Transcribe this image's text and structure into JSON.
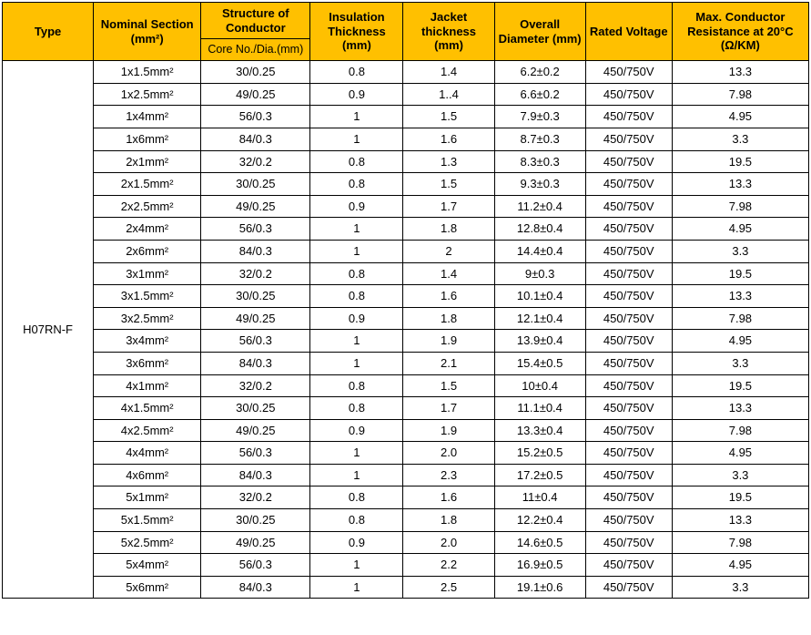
{
  "colors": {
    "header_bg": "#ffc000",
    "border": "#000000",
    "text": "#000000",
    "bg": "#ffffff"
  },
  "header": {
    "type": "Type",
    "nominal": "Nominal Section (mm²)",
    "structure_top": "Structure of Conductor",
    "structure_sub": "Core No./Dia.(mm)",
    "insulation": "Insulation Thickness (mm)",
    "jacket": "Jacket thickness (mm)",
    "diameter": "Overall Diameter (mm)",
    "voltage": "Rated Voltage",
    "resistance": "Max. Conductor Resistance at 20°C (Ω/KM)"
  },
  "type_label": "H07RN-F",
  "rows": [
    {
      "nom": "1x1.5mm²",
      "str": "30/0.25",
      "ins": "0.8",
      "jack": "1.4",
      "dia": "6.2±0.2",
      "volt": "450/750V",
      "res": "13.3"
    },
    {
      "nom": "1x2.5mm²",
      "str": "49/0.25",
      "ins": "0.9",
      "jack": "1..4",
      "dia": "6.6±0.2",
      "volt": "450/750V",
      "res": "7.98"
    },
    {
      "nom": "1x4mm²",
      "str": "56/0.3",
      "ins": "1",
      "jack": "1.5",
      "dia": "7.9±0.3",
      "volt": "450/750V",
      "res": "4.95"
    },
    {
      "nom": "1x6mm²",
      "str": "84/0.3",
      "ins": "1",
      "jack": "1.6",
      "dia": "8.7±0.3",
      "volt": "450/750V",
      "res": "3.3"
    },
    {
      "nom": "2x1mm²",
      "str": "32/0.2",
      "ins": "0.8",
      "jack": "1.3",
      "dia": "8.3±0.3",
      "volt": "450/750V",
      "res": "19.5"
    },
    {
      "nom": "2x1.5mm²",
      "str": "30/0.25",
      "ins": "0.8",
      "jack": "1.5",
      "dia": "9.3±0.3",
      "volt": "450/750V",
      "res": "13.3"
    },
    {
      "nom": "2x2.5mm²",
      "str": "49/0.25",
      "ins": "0.9",
      "jack": "1.7",
      "dia": "11.2±0.4",
      "volt": "450/750V",
      "res": "7.98"
    },
    {
      "nom": "2x4mm²",
      "str": "56/0.3",
      "ins": "1",
      "jack": "1.8",
      "dia": "12.8±0.4",
      "volt": "450/750V",
      "res": "4.95"
    },
    {
      "nom": "2x6mm²",
      "str": "84/0.3",
      "ins": "1",
      "jack": "2",
      "dia": "14.4±0.4",
      "volt": "450/750V",
      "res": "3.3"
    },
    {
      "nom": "3x1mm²",
      "str": "32/0.2",
      "ins": "0.8",
      "jack": "1.4",
      "dia": "9±0.3",
      "volt": "450/750V",
      "res": "19.5"
    },
    {
      "nom": "3x1.5mm²",
      "str": "30/0.25",
      "ins": "0.8",
      "jack": "1.6",
      "dia": "10.1±0.4",
      "volt": "450/750V",
      "res": "13.3"
    },
    {
      "nom": "3x2.5mm²",
      "str": "49/0.25",
      "ins": "0.9",
      "jack": "1.8",
      "dia": "12.1±0.4",
      "volt": "450/750V",
      "res": "7.98"
    },
    {
      "nom": "3x4mm²",
      "str": "56/0.3",
      "ins": "1",
      "jack": "1.9",
      "dia": "13.9±0.4",
      "volt": "450/750V",
      "res": "4.95"
    },
    {
      "nom": "3x6mm²",
      "str": "84/0.3",
      "ins": "1",
      "jack": "2.1",
      "dia": "15.4±0.5",
      "volt": "450/750V",
      "res": "3.3"
    },
    {
      "nom": "4x1mm²",
      "str": "32/0.2",
      "ins": "0.8",
      "jack": "1.5",
      "dia": "10±0.4",
      "volt": "450/750V",
      "res": "19.5"
    },
    {
      "nom": "4x1.5mm²",
      "str": "30/0.25",
      "ins": "0.8",
      "jack": "1.7",
      "dia": "11.1±0.4",
      "volt": "450/750V",
      "res": "13.3"
    },
    {
      "nom": "4x2.5mm²",
      "str": "49/0.25",
      "ins": "0.9",
      "jack": "1.9",
      "dia": "13.3±0.4",
      "volt": "450/750V",
      "res": "7.98"
    },
    {
      "nom": "4x4mm²",
      "str": "56/0.3",
      "ins": "1",
      "jack": "2.0",
      "dia": "15.2±0.5",
      "volt": "450/750V",
      "res": "4.95"
    },
    {
      "nom": "4x6mm²",
      "str": "84/0.3",
      "ins": "1",
      "jack": "2.3",
      "dia": "17.2±0.5",
      "volt": "450/750V",
      "res": "3.3"
    },
    {
      "nom": "5x1mm²",
      "str": "32/0.2",
      "ins": "0.8",
      "jack": "1.6",
      "dia": "11±0.4",
      "volt": "450/750V",
      "res": "19.5"
    },
    {
      "nom": "5x1.5mm²",
      "str": "30/0.25",
      "ins": "0.8",
      "jack": "1.8",
      "dia": "12.2±0.4",
      "volt": "450/750V",
      "res": "13.3"
    },
    {
      "nom": "5x2.5mm²",
      "str": "49/0.25",
      "ins": "0.9",
      "jack": "2.0",
      "dia": "14.6±0.5",
      "volt": "450/750V",
      "res": "7.98"
    },
    {
      "nom": "5x4mm²",
      "str": "56/0.3",
      "ins": "1",
      "jack": "2.2",
      "dia": "16.9±0.5",
      "volt": "450/750V",
      "res": "4.95"
    },
    {
      "nom": "5x6mm²",
      "str": "84/0.3",
      "ins": "1",
      "jack": "2.5",
      "dia": "19.1±0.6",
      "volt": "450/750V",
      "res": "3.3"
    }
  ]
}
